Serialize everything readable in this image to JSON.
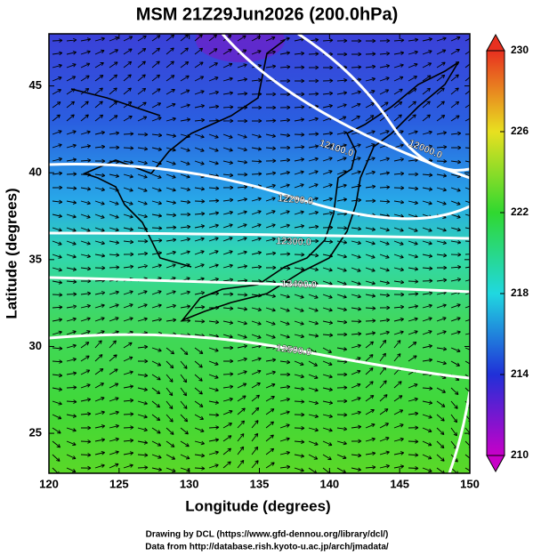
{
  "chart_data": {
    "type": "map",
    "title": "MSM 21Z29Jun2026 (200.0hPa)",
    "x_label": "Longitude (degrees)",
    "y_label": "Latitude  (degrees)",
    "xlim": [
      120,
      150
    ],
    "ylim": [
      22.7,
      48
    ],
    "xticks": [
      120,
      125,
      130,
      135,
      140,
      145,
      150
    ],
    "yticks": [
      25,
      30,
      35,
      40,
      45
    ],
    "colorbar": {
      "clim": [
        210,
        230
      ],
      "ticks": [
        210,
        214,
        218,
        222,
        226,
        230
      ],
      "colors": [
        "#c800c8",
        "#2030d8",
        "#20d8e0",
        "#30d830",
        "#e8e020",
        "#e83020"
      ]
    },
    "contour_labels": [
      "12000.0",
      "12100.0",
      "12200.0",
      "12300.0",
      "12400.0",
      "12500.0"
    ]
  },
  "credits": [
    "Drawing by DCL (https://www.gfd-dennou.org/library/dcl/)",
    "Data from http://database.rish.kyoto-u.ac.jp/arch/jmadata/"
  ]
}
